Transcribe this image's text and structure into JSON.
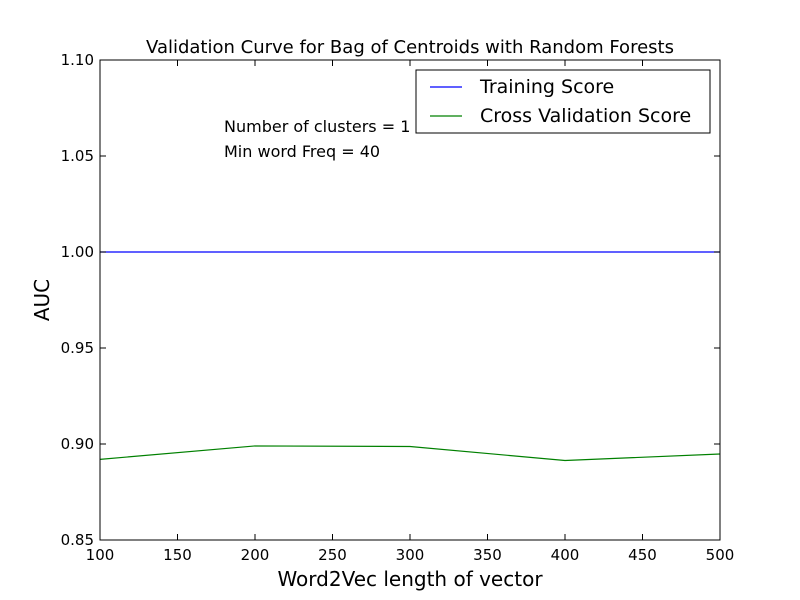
{
  "chart_data": {
    "type": "line",
    "title": "Validation Curve for Bag of Centroids with Random Forests",
    "xlabel": "Word2Vec length of vector",
    "ylabel": "AUC",
    "xlim": [
      100,
      500
    ],
    "ylim": [
      0.85,
      1.1
    ],
    "xticks": [
      100,
      150,
      200,
      250,
      300,
      350,
      400,
      450,
      500
    ],
    "yticks": [
      "0.85",
      "0.90",
      "0.95",
      "1.00",
      "1.05",
      "1.10"
    ],
    "x": [
      100,
      200,
      300,
      400,
      500
    ],
    "series": [
      {
        "name": "Training Score",
        "color": "#0000ff",
        "values": [
          1.0,
          1.0,
          1.0,
          1.0,
          1.0
        ]
      },
      {
        "name": "Cross Validation Score",
        "color": "#008000",
        "values": [
          0.892,
          0.899,
          0.8987,
          0.8914,
          0.8948
        ]
      }
    ],
    "legend_position": "top-right",
    "grid": false,
    "annotations": [
      "Number of clusters = 1",
      "Min word Freq = 40"
    ]
  }
}
